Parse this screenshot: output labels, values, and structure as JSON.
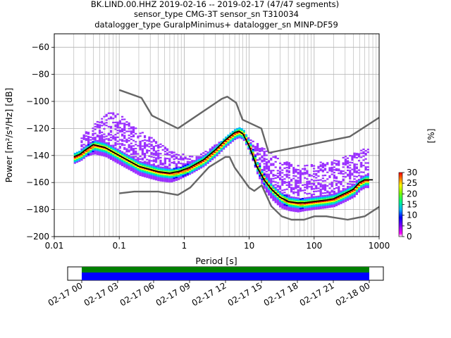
{
  "title": {
    "line1": "BK.LIND.00.HHZ   2019-02-16 -- 2019-02-17  (47/47 segments)",
    "line2": "sensor_type CMG-3T sensor_sn T310034",
    "line3": "datalogger_type GuralpMinimus+ datalogger_sn MINP-DF59"
  },
  "chart_data": [
    {
      "type": "heatmap",
      "subtype": "probabilistic-power-spectral-density",
      "xlabel": "Period [s]",
      "ylabel": "Power [m²/s⁴/Hz] [dB]",
      "xscale": "log",
      "xlim": [
        0.01,
        1000
      ],
      "ylim": [
        -200,
        -50
      ],
      "x_ticks": [
        0.01,
        0.1,
        1,
        10,
        100,
        1000
      ],
      "x_tick_labels": [
        "0.01",
        "0.1",
        "1",
        "10",
        "100",
        "1000"
      ],
      "y_ticks": [
        -200,
        -180,
        -160,
        -140,
        -120,
        -100,
        -80,
        -60
      ],
      "y_tick_labels": [
        "−200",
        "−180",
        "−160",
        "−140",
        "−120",
        "−100",
        "−80",
        "−60"
      ],
      "grid": true,
      "colorbar": {
        "label": "[%]",
        "range": [
          0,
          30
        ],
        "ticks": [
          0,
          5,
          10,
          15,
          20,
          25,
          30
        ],
        "colormap": "pqlx"
      },
      "series": [
        {
          "role": "new-high-noise-model",
          "color": "#666666",
          "x": [
            0.1,
            0.22,
            0.32,
            0.8,
            3.8,
            4.6,
            6.3,
            7.9,
            15.4,
            20,
            354.8,
            1000
          ],
          "y": [
            -91.5,
            -97.4,
            -110.5,
            -120,
            -98,
            -96.5,
            -101,
            -113.5,
            -120,
            -138,
            -126,
            -112
          ]
        },
        {
          "role": "new-low-noise-model",
          "color": "#666666",
          "x": [
            0.1,
            0.17,
            0.4,
            0.8,
            1.24,
            2.4,
            4.3,
            5,
            6,
            10,
            12,
            15.6,
            21.9,
            31.6,
            45,
            70,
            101,
            154,
            328,
            600,
            1000
          ],
          "y": [
            -168,
            -166.7,
            -166.7,
            -169.2,
            -163.7,
            -148.6,
            -141.1,
            -141.1,
            -149,
            -163.8,
            -166.2,
            -162.1,
            -177.5,
            -185,
            -187.5,
            -187.5,
            -185,
            -185,
            -187.5,
            -185,
            -178
          ]
        },
        {
          "role": "mode",
          "color": "#000000",
          "x": [
            0.02,
            0.025,
            0.03,
            0.04,
            0.06,
            0.1,
            0.2,
            0.4,
            0.6,
            0.8,
            1.2,
            2,
            3,
            4,
            5,
            6,
            7,
            8,
            10,
            13,
            17,
            22,
            30,
            40,
            55,
            70,
            100,
            150,
            200,
            300,
            400,
            500,
            600,
            800
          ],
          "y": [
            -141,
            -139,
            -136,
            -132,
            -134,
            -140,
            -148,
            -152,
            -153,
            -152,
            -149,
            -143,
            -136,
            -130,
            -126,
            -123,
            -122,
            -124,
            -133,
            -148,
            -158,
            -165,
            -171,
            -174,
            -175,
            -175,
            -174,
            -173,
            -172,
            -168,
            -165,
            -160,
            -158,
            -158
          ]
        },
        {
          "role": "upper-percentile-band",
          "color": "#ff00ff",
          "x": [
            0.025,
            0.03,
            0.05,
            0.07,
            0.1,
            0.15,
            0.3,
            0.5,
            0.8,
            1.5,
            3,
            5,
            7,
            10,
            15,
            25,
            40,
            60,
            100,
            200,
            300,
            500,
            700
          ],
          "y": [
            -127,
            -121,
            -112,
            -107,
            -109,
            -117,
            -126,
            -133,
            -138,
            -140,
            -131,
            -124,
            -122,
            -126,
            -133,
            -140,
            -145,
            -147,
            -145,
            -143,
            -140,
            -135,
            -133
          ]
        },
        {
          "role": "lower-percentile-band",
          "color": "#9b30ff",
          "x": [
            0.02,
            0.025,
            0.03,
            0.04,
            0.06,
            0.1,
            0.2,
            0.4,
            0.6,
            0.8,
            1.2,
            2,
            3,
            4,
            5,
            6,
            7,
            8,
            10,
            13,
            17,
            22,
            30,
            40,
            55,
            70,
            100,
            150,
            200,
            300,
            400,
            500,
            600,
            800
          ],
          "y": [
            -145,
            -143,
            -140,
            -138,
            -140,
            -146,
            -154,
            -158,
            -159,
            -157,
            -153,
            -147,
            -140,
            -134,
            -129,
            -126,
            -125,
            -127,
            -137,
            -153,
            -165,
            -172,
            -178,
            -180,
            -181,
            -180,
            -179,
            -178,
            -177,
            -173,
            -170,
            -165,
            -163,
            -163
          ]
        }
      ]
    },
    {
      "type": "timeline",
      "role": "data-availability",
      "x_tick_labels": [
        "02-17 00",
        "02-17 03",
        "02-17 06",
        "02-17 09",
        "02-17 12",
        "02-17 15",
        "02-17 18",
        "02-17 21",
        "02-18 00"
      ],
      "bars": [
        {
          "name": "",
          "color": "#008000",
          "start": "02-17 00",
          "end": "02-18 00"
        },
        {
          "name": "",
          "color": "#0000ff",
          "start": "02-17 00",
          "end": "02-18 00"
        }
      ]
    }
  ]
}
